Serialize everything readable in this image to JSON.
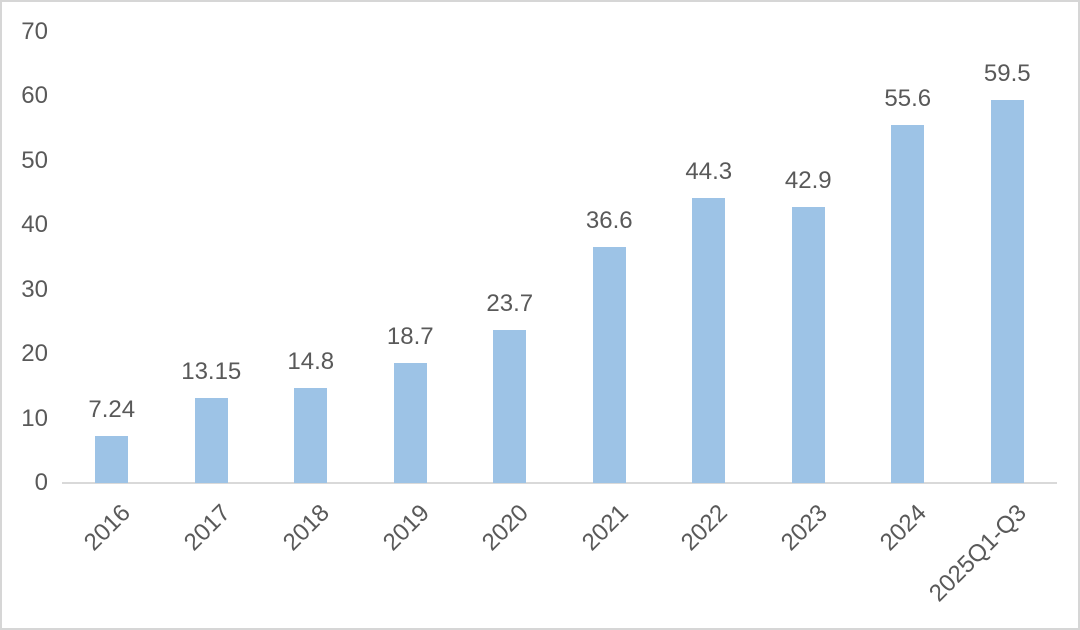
{
  "chart_data": {
    "type": "bar",
    "categories": [
      "2016",
      "2017",
      "2018",
      "2019",
      "2020",
      "2021",
      "2022",
      "2023",
      "2024",
      "2025Q1-Q3"
    ],
    "values": [
      7.24,
      13.15,
      14.8,
      18.7,
      23.7,
      36.6,
      44.3,
      42.9,
      55.6,
      59.5
    ],
    "data_labels": [
      "7.24",
      "13.15",
      "14.8",
      "18.7",
      "23.7",
      "36.6",
      "44.3",
      "42.9",
      "55.6",
      "59.5"
    ],
    "title": "",
    "xlabel": "",
    "ylabel": "",
    "ylim": [
      0,
      70
    ],
    "yticks": [
      0,
      10,
      20,
      30,
      40,
      50,
      60,
      70
    ],
    "grid": false,
    "legend": false,
    "x_label_rotation_deg": -45,
    "bar_color": "#9DC3E6",
    "label_color": "#595959",
    "axis_line_color": "#D9D9D9",
    "frame_border_color": "#D6D6D6",
    "background_color": "#FFFFFF"
  }
}
